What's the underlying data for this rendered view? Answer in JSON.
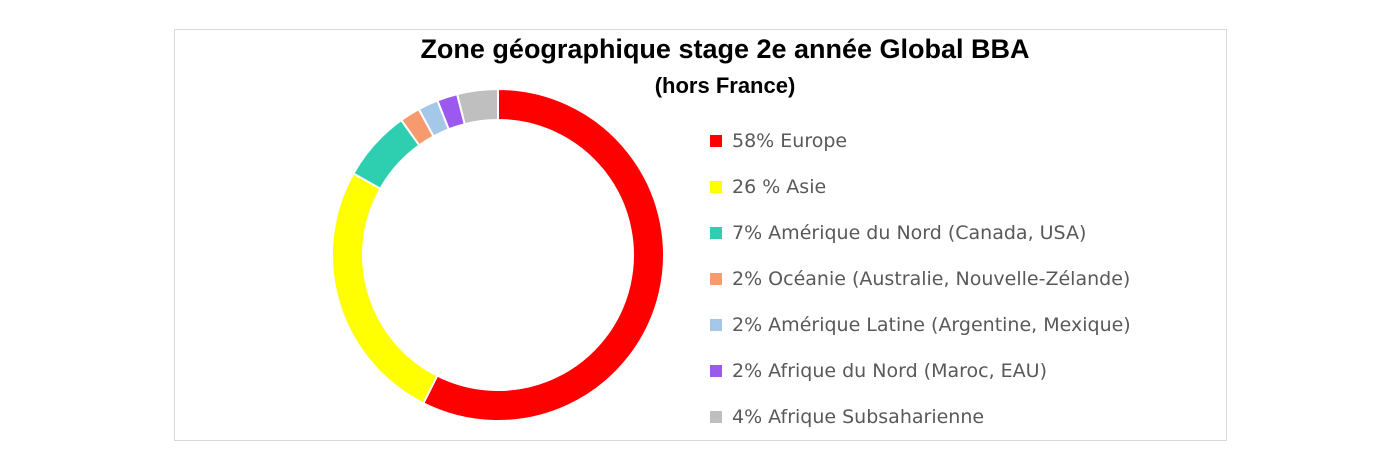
{
  "chart_data": {
    "type": "pie",
    "variant": "donut",
    "title": "Zone géographique  stage 2e année Global BBA",
    "subtitle": "(hors France)",
    "legend_position": "right",
    "categories": [
      "58% Europe",
      "26 % Asie",
      "7% Amérique du Nord (Canada, USA)",
      "2% Océanie (Australie, Nouvelle-Zélande)",
      "2% Amérique Latine (Argentine, Mexique)",
      "2% Afrique du Nord (Maroc, EAU)",
      "4% Afrique Subsaharienne"
    ],
    "values": [
      58,
      26,
      7,
      2,
      2,
      2,
      4
    ],
    "colors": [
      "#ff0000",
      "#ffff00",
      "#2ecfb0",
      "#f79a6e",
      "#a6c8e8",
      "#9b59f0",
      "#bfbfbf"
    ]
  }
}
